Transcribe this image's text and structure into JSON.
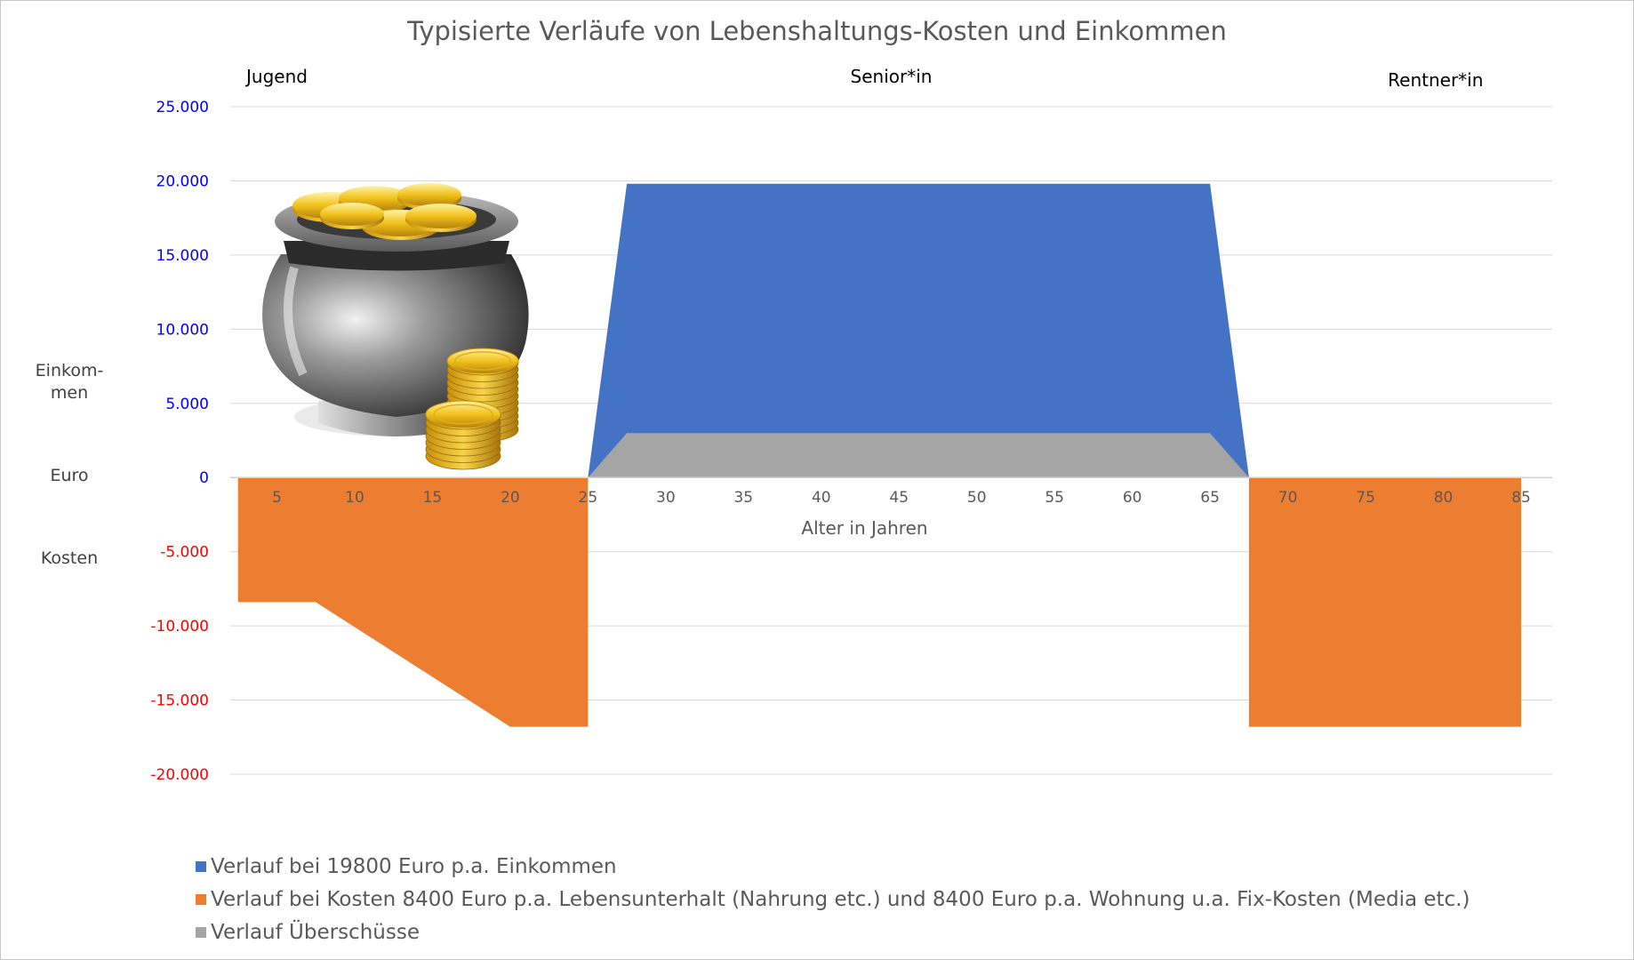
{
  "chart_data": {
    "type": "area",
    "title": "Typisierte Verläufe von Lebenshaltungs-Kosten und Einkommen",
    "xlabel": "Alter in Jahren",
    "ylabel_parts": [
      "Einkom-",
      "men",
      "Euro",
      "Kosten"
    ],
    "ylim": [
      -20000,
      25000
    ],
    "yticks": [
      {
        "value": 25000,
        "label": "25.000"
      },
      {
        "value": 20000,
        "label": "20.000"
      },
      {
        "value": 15000,
        "label": "15.000"
      },
      {
        "value": 10000,
        "label": "10.000"
      },
      {
        "value": 5000,
        "label": "5.000"
      },
      {
        "value": 0,
        "label": "0"
      },
      {
        "value": -5000,
        "label": "-5.000"
      },
      {
        "value": -10000,
        "label": "-10.000"
      },
      {
        "value": -15000,
        "label": "-15.000"
      },
      {
        "value": -20000,
        "label": "-20.000"
      }
    ],
    "xlim": [
      2,
      87
    ],
    "xticks": [
      5,
      10,
      15,
      20,
      25,
      30,
      35,
      40,
      45,
      50,
      55,
      60,
      65,
      70,
      75,
      80,
      85
    ],
    "grid": true,
    "phases": [
      {
        "label": "Jugend",
        "x": 5
      },
      {
        "label": "Senior*in",
        "x": 44.5
      },
      {
        "label": "Rentner*in",
        "x": 79.5
      }
    ],
    "series": [
      {
        "name": "Verlauf bei 19800 Euro p.a. Einkommen",
        "color": "#4472c4",
        "points": [
          [
            25,
            0
          ],
          [
            27.5,
            19800
          ],
          [
            65,
            19800
          ],
          [
            67.5,
            0
          ]
        ]
      },
      {
        "name": "Verlauf bei Kosten 8400 Euro p.a. Lebensunterhalt (Nahrung etc.) und 8400 Euro p.a. Wohnung u.a. Fix-Kosten (Media etc.)",
        "color": "#ed7d31",
        "segments": [
          [
            [
              2.5,
              0
            ],
            [
              2.5,
              -8400
            ],
            [
              7.5,
              -8400
            ],
            [
              20,
              -16800
            ],
            [
              25,
              -16800
            ],
            [
              25,
              0
            ]
          ],
          [
            [
              67.5,
              0
            ],
            [
              67.5,
              -16800
            ],
            [
              85,
              -16800
            ],
            [
              85,
              0
            ]
          ]
        ]
      },
      {
        "name": "Verlauf Überschüsse",
        "color": "#a5a5a5",
        "points": [
          [
            25,
            0
          ],
          [
            27.5,
            3000
          ],
          [
            65,
            3000
          ],
          [
            67.5,
            0
          ]
        ]
      }
    ],
    "legend_position": "bottom-left"
  },
  "colors": {
    "positive_tick": "#0000ff",
    "negative_tick": "#ff0000",
    "zero_tick": "#0000ff",
    "grid": "#d9d9d9"
  },
  "illustration": "pot-of-gold-coins"
}
